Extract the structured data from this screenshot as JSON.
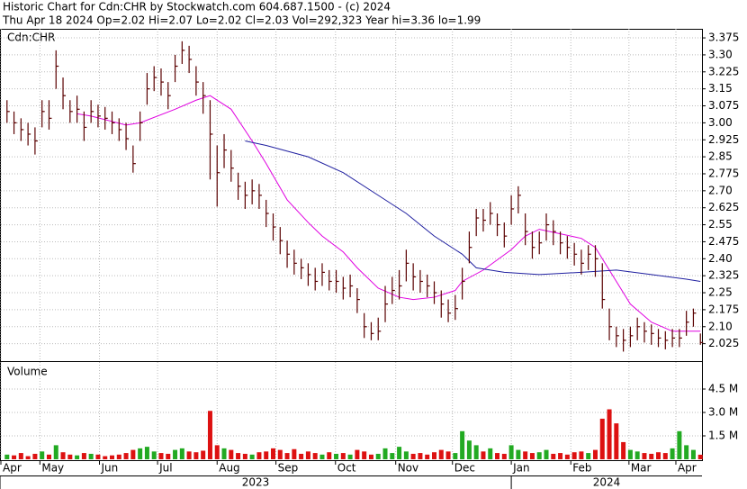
{
  "chart_data": {
    "type": "ohlc",
    "title": "Historic Chart for Cdn:CHR by Stockwatch.com 604.687.1500 - (c) 2024",
    "subtitle": "Thu Apr 18 2024  Op=2.02  Hi=2.07  Lo=2.02  Cl=2.03  Vol=292,323  Year hi=3.36  lo=1.99",
    "symbol_label": "Cdn:CHR",
    "color": "#5a0000",
    "grid": true,
    "x": [
      0,
      1,
      2,
      3,
      4,
      5,
      6,
      7,
      8,
      9,
      10,
      11,
      12,
      13,
      14,
      15,
      16,
      17,
      18,
      19,
      20,
      21,
      22,
      23,
      24,
      25,
      26,
      27,
      28,
      29,
      30,
      31,
      32,
      33,
      34,
      35,
      36,
      37,
      38,
      39,
      40,
      41,
      42,
      43,
      44,
      45,
      46,
      47,
      48,
      49,
      50,
      51,
      52,
      53,
      54,
      55,
      56,
      57,
      58,
      59,
      60,
      61,
      62,
      63,
      64,
      65,
      66,
      67,
      68,
      69,
      70,
      71,
      72,
      73,
      74,
      75,
      76,
      77,
      78,
      79,
      80,
      81,
      82,
      83,
      84,
      85,
      86,
      87,
      88,
      89,
      90,
      91,
      92,
      93,
      94,
      95,
      96,
      97,
      98,
      99
    ],
    "high": [
      3.1,
      3.05,
      3.02,
      3.0,
      2.98,
      3.1,
      3.1,
      3.32,
      3.2,
      3.1,
      3.12,
      3.05,
      3.1,
      3.08,
      3.07,
      3.05,
      3.02,
      3.0,
      2.9,
      3.05,
      3.22,
      3.25,
      3.24,
      3.18,
      3.3,
      3.36,
      3.34,
      3.25,
      3.18,
      3.1,
      2.9,
      2.95,
      2.88,
      2.78,
      2.74,
      2.75,
      2.73,
      2.66,
      2.6,
      2.54,
      2.48,
      2.44,
      2.4,
      2.38,
      2.36,
      2.38,
      2.35,
      2.35,
      2.32,
      2.33,
      2.27,
      2.16,
      2.12,
      2.14,
      2.28,
      2.32,
      2.35,
      2.44,
      2.38,
      2.35,
      2.33,
      2.3,
      2.26,
      2.22,
      2.24,
      2.36,
      2.52,
      2.62,
      2.62,
      2.65,
      2.6,
      2.56,
      2.68,
      2.72,
      2.6,
      2.52,
      2.52,
      2.6,
      2.57,
      2.52,
      2.5,
      2.47,
      2.44,
      2.46,
      2.46,
      2.38,
      2.18,
      2.1,
      2.09,
      2.1,
      2.14,
      2.12,
      2.11,
      2.09,
      2.08,
      2.09,
      2.09,
      2.17,
      2.18,
      2.07
    ],
    "low": [
      3.0,
      2.95,
      2.92,
      2.9,
      2.86,
      2.98,
      2.97,
      3.15,
      3.06,
      3.0,
      3.0,
      2.92,
      3.0,
      2.98,
      2.97,
      2.95,
      2.92,
      2.88,
      2.78,
      2.92,
      3.08,
      3.14,
      3.12,
      3.06,
      3.18,
      3.26,
      3.22,
      3.12,
      3.04,
      2.75,
      2.63,
      2.8,
      2.74,
      2.66,
      2.62,
      2.64,
      2.62,
      2.54,
      2.48,
      2.42,
      2.36,
      2.33,
      2.31,
      2.28,
      2.26,
      2.28,
      2.26,
      2.25,
      2.22,
      2.23,
      2.16,
      2.05,
      2.04,
      2.04,
      2.12,
      2.2,
      2.22,
      2.3,
      2.26,
      2.25,
      2.23,
      2.2,
      2.14,
      2.12,
      2.13,
      2.22,
      2.38,
      2.5,
      2.52,
      2.55,
      2.5,
      2.45,
      2.55,
      2.6,
      2.46,
      2.4,
      2.42,
      2.48,
      2.46,
      2.42,
      2.4,
      2.37,
      2.33,
      2.35,
      2.32,
      2.18,
      2.04,
      2.01,
      1.99,
      2.01,
      2.04,
      2.03,
      2.02,
      2.01,
      2.0,
      2.01,
      2.01,
      2.06,
      2.1,
      2.02
    ],
    "close": [
      3.05,
      3.0,
      2.97,
      2.95,
      2.92,
      3.05,
      3.02,
      3.25,
      3.12,
      3.05,
      3.06,
      2.98,
      3.05,
      3.03,
      3.02,
      3.0,
      2.97,
      2.93,
      2.82,
      3.0,
      3.15,
      3.2,
      3.18,
      3.12,
      3.25,
      3.32,
      3.28,
      3.18,
      3.12,
      2.95,
      2.78,
      2.88,
      2.8,
      2.72,
      2.68,
      2.7,
      2.68,
      2.6,
      2.54,
      2.48,
      2.42,
      2.38,
      2.36,
      2.33,
      2.3,
      2.34,
      2.3,
      2.3,
      2.27,
      2.28,
      2.22,
      2.1,
      2.07,
      2.08,
      2.2,
      2.26,
      2.28,
      2.38,
      2.32,
      2.3,
      2.28,
      2.25,
      2.2,
      2.16,
      2.18,
      2.3,
      2.45,
      2.58,
      2.57,
      2.6,
      2.55,
      2.5,
      2.62,
      2.68,
      2.52,
      2.45,
      2.47,
      2.55,
      2.52,
      2.47,
      2.45,
      2.42,
      2.38,
      2.42,
      2.4,
      2.22,
      2.1,
      2.06,
      2.04,
      2.06,
      2.1,
      2.08,
      2.07,
      2.05,
      2.04,
      2.05,
      2.05,
      2.12,
      2.16,
      2.03
    ],
    "moving_averages": [
      {
        "color": "#e000e0",
        "x": [
          10,
          12,
          17,
          19,
          24,
          27,
          29,
          32,
          35,
          37,
          40,
          43,
          45,
          48,
          50,
          53,
          56,
          58,
          61,
          64,
          65,
          68,
          72,
          74,
          76,
          79,
          82,
          84,
          87,
          89,
          92,
          95,
          99
        ],
        "values": [
          3.04,
          3.03,
          2.99,
          3.0,
          3.06,
          3.1,
          3.12,
          3.06,
          2.92,
          2.82,
          2.66,
          2.56,
          2.5,
          2.43,
          2.36,
          2.27,
          2.23,
          2.22,
          2.23,
          2.26,
          2.3,
          2.35,
          2.44,
          2.5,
          2.53,
          2.51,
          2.49,
          2.45,
          2.3,
          2.2,
          2.12,
          2.08,
          2.08
        ]
      },
      {
        "color": "#2020a0",
        "x": [
          34,
          37,
          43,
          48,
          53,
          57,
          61,
          65,
          67,
          71,
          76,
          82,
          87,
          92,
          97,
          99
        ],
        "values": [
          2.92,
          2.9,
          2.85,
          2.78,
          2.68,
          2.6,
          2.5,
          2.42,
          2.36,
          2.34,
          2.33,
          2.34,
          2.35,
          2.33,
          2.31,
          2.3
        ]
      }
    ],
    "xlim": [
      -1,
      100
    ],
    "xticks": [
      {
        "value": -1,
        "label": "Apr"
      },
      {
        "value": 4.7,
        "label": "May"
      },
      {
        "value": 13.2,
        "label": "Jun"
      },
      {
        "value": 21.5,
        "label": "Jul"
      },
      {
        "value": 30,
        "label": "Aug"
      },
      {
        "value": 38.4,
        "label": "Sep"
      },
      {
        "value": 46.9,
        "label": "Oct"
      },
      {
        "value": 55.5,
        "label": "Nov"
      },
      {
        "value": 63.6,
        "label": "Dec"
      },
      {
        "value": 72,
        "label": "Jan"
      },
      {
        "value": 80.5,
        "label": "Feb"
      },
      {
        "value": 88.8,
        "label": "Mar"
      },
      {
        "value": 95.5,
        "label": "Apr"
      }
    ],
    "x_groups": [
      {
        "label": "2023",
        "start": -1,
        "end": 72
      },
      {
        "label": "2024",
        "start": 72,
        "end": 100
      }
    ],
    "ylim": [
      1.948,
      3.415
    ],
    "yticks": [
      3.375,
      {
        "value": 3.3,
        "label": "3.30"
      },
      3.225,
      3.15,
      3.075,
      {
        "value": 3.0,
        "label": "3.00"
      },
      2.925,
      2.85,
      2.775,
      {
        "value": 2.7,
        "label": "2.70"
      },
      2.625,
      2.55,
      2.475,
      {
        "value": 2.4,
        "label": "2.40"
      },
      2.325,
      2.25,
      2.175,
      {
        "value": 2.1,
        "label": "2.10"
      },
      2.025
    ],
    "volume": {
      "type": "bar",
      "label": "Volume",
      "up_color": "#22aa22",
      "down_color": "#dd1111",
      "values": [
        300000,
        250000,
        400000,
        200000,
        350000,
        500000,
        300000,
        900000,
        450000,
        300000,
        250000,
        400000,
        350000,
        300000,
        200000,
        250000,
        300000,
        400000,
        600000,
        700000,
        800000,
        500000,
        400000,
        350000,
        600000,
        700000,
        500000,
        450000,
        550000,
        3100000,
        900000,
        700000,
        600000,
        400000,
        350000,
        300000,
        450000,
        500000,
        700000,
        600000,
        400000,
        650000,
        350000,
        500000,
        400000,
        300000,
        450000,
        350000,
        400000,
        300000,
        600000,
        500000,
        300000,
        350000,
        700000,
        400000,
        800000,
        500000,
        350000,
        400000,
        300000,
        450000,
        600000,
        500000,
        400000,
        1800000,
        1200000,
        900000,
        500000,
        700000,
        400000,
        350000,
        900000,
        600000,
        500000,
        400000,
        450000,
        600000,
        350000,
        400000,
        300000,
        450000,
        500000,
        400000,
        600000,
        2600000,
        3200000,
        2300000,
        1100000,
        600000,
        500000,
        400000,
        350000,
        450000,
        400000,
        700000,
        1800000,
        900000,
        600000,
        292323
      ],
      "ylim": [
        0,
        6230000
      ],
      "yticks": [
        {
          "value": 1500000,
          "label": "1.5 M"
        },
        {
          "value": 3000000,
          "label": "3.0 M"
        },
        {
          "value": 4500000,
          "label": "4.5 M"
        }
      ]
    }
  }
}
